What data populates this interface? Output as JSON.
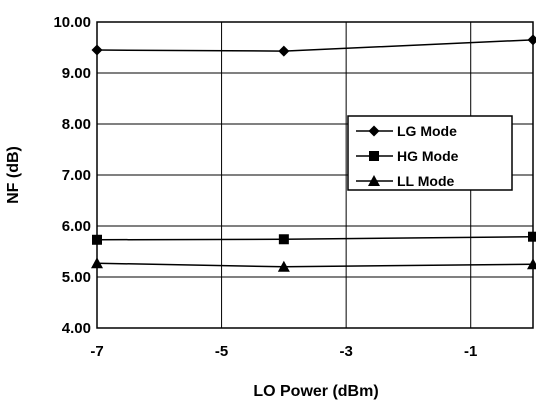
{
  "chart_data": {
    "type": "line",
    "title": "",
    "xlabel": "LO Power (dBm)",
    "ylabel": "NF (dB)",
    "xlim": [
      -7,
      0
    ],
    "ylim": [
      4,
      10
    ],
    "x_ticks": [
      -7,
      -5,
      -3,
      -1
    ],
    "x_tick_labels": [
      "-7",
      "-5",
      "-3",
      "-1"
    ],
    "y_ticks": [
      4,
      5,
      6,
      7,
      8,
      9,
      10
    ],
    "y_tick_labels": [
      "4.00",
      "5.00",
      "6.00",
      "7.00",
      "8.00",
      "9.00",
      "10.00"
    ],
    "grid": true,
    "legend_position": "right",
    "series": [
      {
        "name": "LG Mode",
        "marker": "diamond",
        "x": [
          -7,
          -4,
          0
        ],
        "y": [
          9.45,
          9.43,
          9.65
        ]
      },
      {
        "name": "HG Mode",
        "marker": "square",
        "x": [
          -7,
          -4,
          0
        ],
        "y": [
          5.73,
          5.74,
          5.79
        ]
      },
      {
        "name": "LL Mode",
        "marker": "triangle",
        "x": [
          -7,
          -4,
          0
        ],
        "y": [
          5.27,
          5.2,
          5.25
        ]
      }
    ],
    "colors": {
      "line": "#000000",
      "grid": "#000000",
      "background": "#ffffff"
    }
  }
}
